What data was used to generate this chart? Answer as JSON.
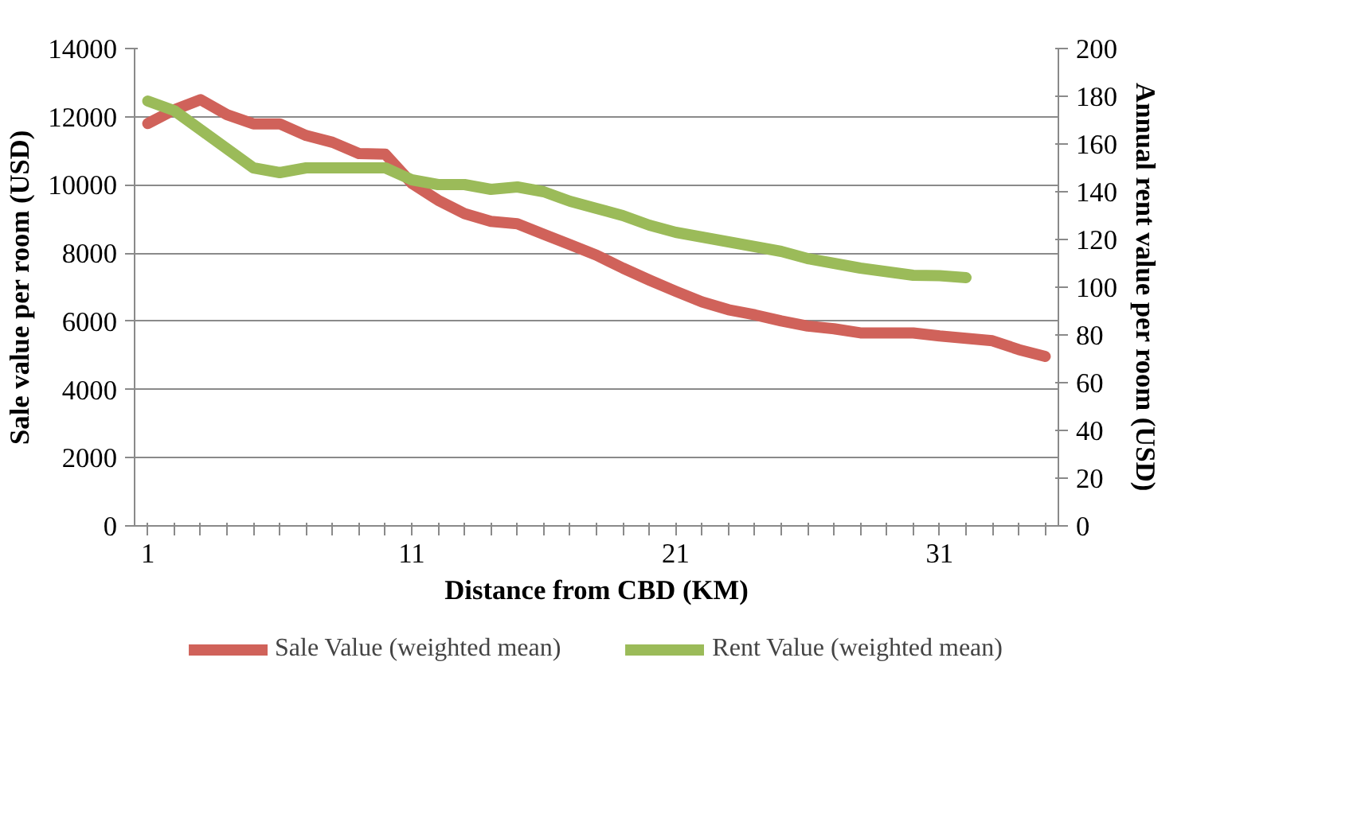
{
  "chart_data": {
    "type": "line",
    "xlabel": "Distance from CBD (KM)",
    "ylabel": "Sale value per room (USD)",
    "y2label": "Annual rent value per room (USD)",
    "categories": [
      "1",
      null,
      null,
      null,
      null,
      null,
      null,
      null,
      null,
      null,
      "11",
      null,
      null,
      null,
      null,
      null,
      null,
      null,
      null,
      null,
      "21",
      null,
      null,
      null,
      null,
      null,
      null,
      null,
      null,
      null,
      "31",
      null,
      null,
      null,
      null
    ],
    "series": [
      {
        "name": "Sale Value (weighted mean)",
        "color": "#d0625a",
        "values": [
          11800,
          12200,
          12500,
          12060,
          11790,
          11790,
          11450,
          11250,
          10920,
          10900,
          10050,
          9550,
          9160,
          8930,
          8860,
          8550,
          8250,
          7940,
          7560,
          7210,
          6880,
          6570,
          6340,
          6190,
          6010,
          5860,
          5780,
          5660,
          5660,
          5660,
          5570,
          5500,
          5430,
          5170,
          4970
        ]
      },
      {
        "name": "Rent Value (weighted mean)",
        "color": "#9bbb59",
        "axis": "y2",
        "values": [
          178,
          174,
          166,
          158,
          150,
          148,
          150,
          150,
          150,
          150,
          145,
          143,
          143,
          141,
          142,
          140,
          136,
          133,
          130,
          126,
          123,
          121,
          119,
          117,
          115,
          112,
          110,
          108,
          106.5,
          105,
          104.8,
          104,
          null,
          null,
          null
        ]
      }
    ],
    "ylim": [
      0,
      14000
    ],
    "yticks": [
      0,
      2000,
      4000,
      6000,
      8000,
      10000,
      12000,
      14000
    ],
    "y2lim": [
      0,
      200
    ],
    "y2ticks": [
      0,
      20,
      40,
      60,
      80,
      100,
      120,
      140,
      160,
      180,
      200
    ],
    "grid": "y",
    "legend": "bottom",
    "line_style": "solid",
    "marker": "none"
  }
}
